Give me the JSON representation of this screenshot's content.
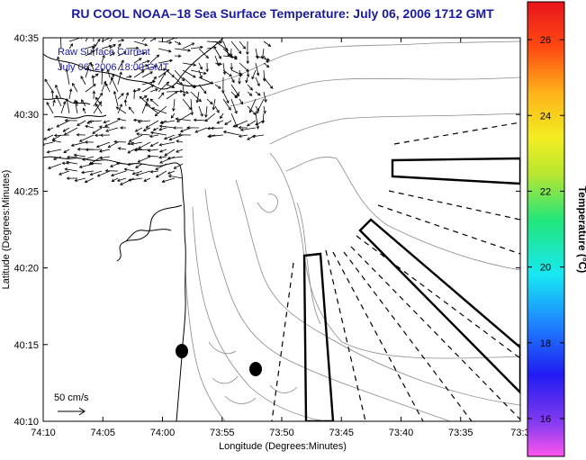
{
  "title": "RU COOL  NOAA–18  Sea Surface Temperature:  July 06, 2006 1712 GMT",
  "annotation": {
    "line1": "Raw Surface Current",
    "line2": "July 06, 2006 18:00 GMT"
  },
  "scale_label": "50 cm/s",
  "xlabel": "Longitude (Degrees:Minutes)",
  "ylabel": "Latitude (Degrees:Minutes)",
  "x_ticks": [
    "74:10",
    "74:05",
    "74:00",
    "73:55",
    "73:50",
    "73:45",
    "73:40",
    "73:35",
    "73:3"
  ],
  "y_ticks": [
    "40:35",
    "40:30",
    "40:25",
    "40:20",
    "40:15",
    "40:10"
  ],
  "colorbar": {
    "label": "Temperature (°C)",
    "ticks": [
      "26",
      "24",
      "22",
      "20",
      "18",
      "16"
    ],
    "range": [
      15,
      27
    ]
  },
  "colors": {
    "title": "#1a1a9e",
    "contour": "#8a8a8a",
    "coast": "#000000"
  }
}
